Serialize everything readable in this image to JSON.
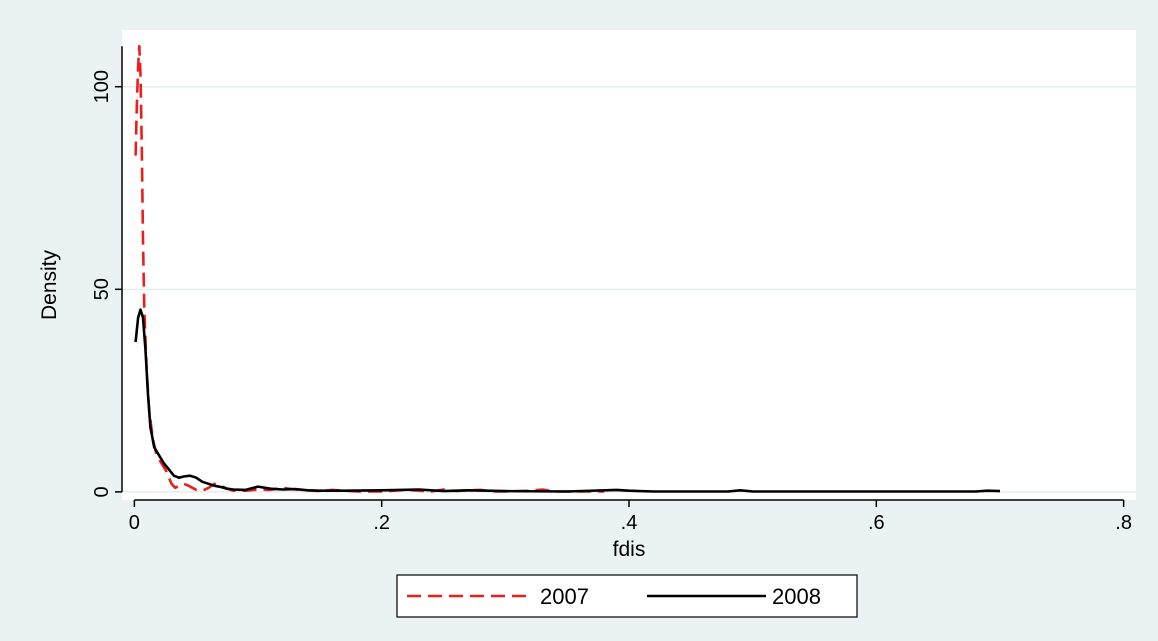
{
  "chart_data": {
    "type": "line",
    "title": "",
    "xlabel": "fdis",
    "ylabel": "Density",
    "xlim": [
      -0.01,
      0.81
    ],
    "ylim": [
      -2,
      114
    ],
    "x_ticks": [
      {
        "value": 0,
        "label": "0"
      },
      {
        "value": 0.2,
        "label": ".2"
      },
      {
        "value": 0.4,
        "label": ".4"
      },
      {
        "value": 0.6,
        "label": ".6"
      },
      {
        "value": 0.8,
        "label": ".8"
      }
    ],
    "y_ticks": [
      {
        "value": 0,
        "label": "0"
      },
      {
        "value": 50,
        "label": "50"
      },
      {
        "value": 100,
        "label": "100"
      }
    ],
    "grid": "horizontal",
    "legend_position": "bottom",
    "colors": {
      "background": "#eaf2f3",
      "plot": "#ffffff",
      "grid": "#dfe9eb"
    },
    "series": [
      {
        "name": "2007",
        "color": "#e8201c",
        "dash": "dashed",
        "points": [
          [
            0.001,
            83
          ],
          [
            0.002,
            95
          ],
          [
            0.003,
            105
          ],
          [
            0.004,
            110
          ],
          [
            0.005,
            103
          ],
          [
            0.006,
            85
          ],
          [
            0.007,
            62
          ],
          [
            0.008,
            45
          ],
          [
            0.01,
            30
          ],
          [
            0.012,
            20
          ],
          [
            0.015,
            13
          ],
          [
            0.018,
            9
          ],
          [
            0.022,
            7
          ],
          [
            0.026,
            5
          ],
          [
            0.03,
            2
          ],
          [
            0.033,
            1
          ],
          [
            0.036,
            1.5
          ],
          [
            0.04,
            2
          ],
          [
            0.044,
            1.5
          ],
          [
            0.047,
            1
          ],
          [
            0.05,
            0.5
          ],
          [
            0.055,
            0.3
          ],
          [
            0.06,
            1
          ],
          [
            0.065,
            2
          ],
          [
            0.07,
            1.5
          ],
          [
            0.075,
            0.8
          ],
          [
            0.08,
            0.3
          ],
          [
            0.09,
            0.3
          ],
          [
            0.1,
            0.6
          ],
          [
            0.11,
            0.5
          ],
          [
            0.12,
            1
          ],
          [
            0.13,
            0.6
          ],
          [
            0.14,
            0.4
          ],
          [
            0.15,
            0.2
          ],
          [
            0.16,
            0.5
          ],
          [
            0.17,
            0.3
          ],
          [
            0.18,
            0.1
          ],
          [
            0.2,
            0.1
          ],
          [
            0.22,
            0.5
          ],
          [
            0.23,
            0.3
          ],
          [
            0.24,
            0.1
          ],
          [
            0.25,
            0.6
          ],
          [
            0.26,
            0.2
          ],
          [
            0.27,
            0.4
          ],
          [
            0.28,
            0.5
          ],
          [
            0.29,
            0.1
          ],
          [
            0.3,
            0.1
          ],
          [
            0.32,
            0.3
          ],
          [
            0.33,
            0.6
          ],
          [
            0.34,
            0.1
          ],
          [
            0.35,
            0.1
          ],
          [
            0.37,
            0.1
          ],
          [
            0.38,
            0.1
          ]
        ]
      },
      {
        "name": "2008",
        "color": "#000000",
        "dash": "solid",
        "points": [
          [
            0.001,
            37
          ],
          [
            0.003,
            43
          ],
          [
            0.005,
            45
          ],
          [
            0.007,
            43
          ],
          [
            0.009,
            35
          ],
          [
            0.011,
            24
          ],
          [
            0.013,
            16
          ],
          [
            0.016,
            11
          ],
          [
            0.02,
            9
          ],
          [
            0.024,
            7
          ],
          [
            0.028,
            5.5
          ],
          [
            0.032,
            4
          ],
          [
            0.036,
            3.5
          ],
          [
            0.04,
            3.8
          ],
          [
            0.045,
            4
          ],
          [
            0.05,
            3.5
          ],
          [
            0.055,
            2.5
          ],
          [
            0.06,
            2
          ],
          [
            0.065,
            1.5
          ],
          [
            0.07,
            1.2
          ],
          [
            0.075,
            0.8
          ],
          [
            0.08,
            0.6
          ],
          [
            0.09,
            0.5
          ],
          [
            0.1,
            1.3
          ],
          [
            0.11,
            0.8
          ],
          [
            0.12,
            0.6
          ],
          [
            0.13,
            0.7
          ],
          [
            0.14,
            0.4
          ],
          [
            0.15,
            0.3
          ],
          [
            0.17,
            0.3
          ],
          [
            0.2,
            0.4
          ],
          [
            0.23,
            0.6
          ],
          [
            0.25,
            0.2
          ],
          [
            0.27,
            0.4
          ],
          [
            0.3,
            0.2
          ],
          [
            0.35,
            0.1
          ],
          [
            0.39,
            0.5
          ],
          [
            0.4,
            0.3
          ],
          [
            0.42,
            0.1
          ],
          [
            0.48,
            0.1
          ],
          [
            0.49,
            0.4
          ],
          [
            0.5,
            0.1
          ],
          [
            0.55,
            0.1
          ],
          [
            0.6,
            0.1
          ],
          [
            0.68,
            0.1
          ],
          [
            0.69,
            0.3
          ],
          [
            0.7,
            0.2
          ]
        ]
      }
    ]
  }
}
